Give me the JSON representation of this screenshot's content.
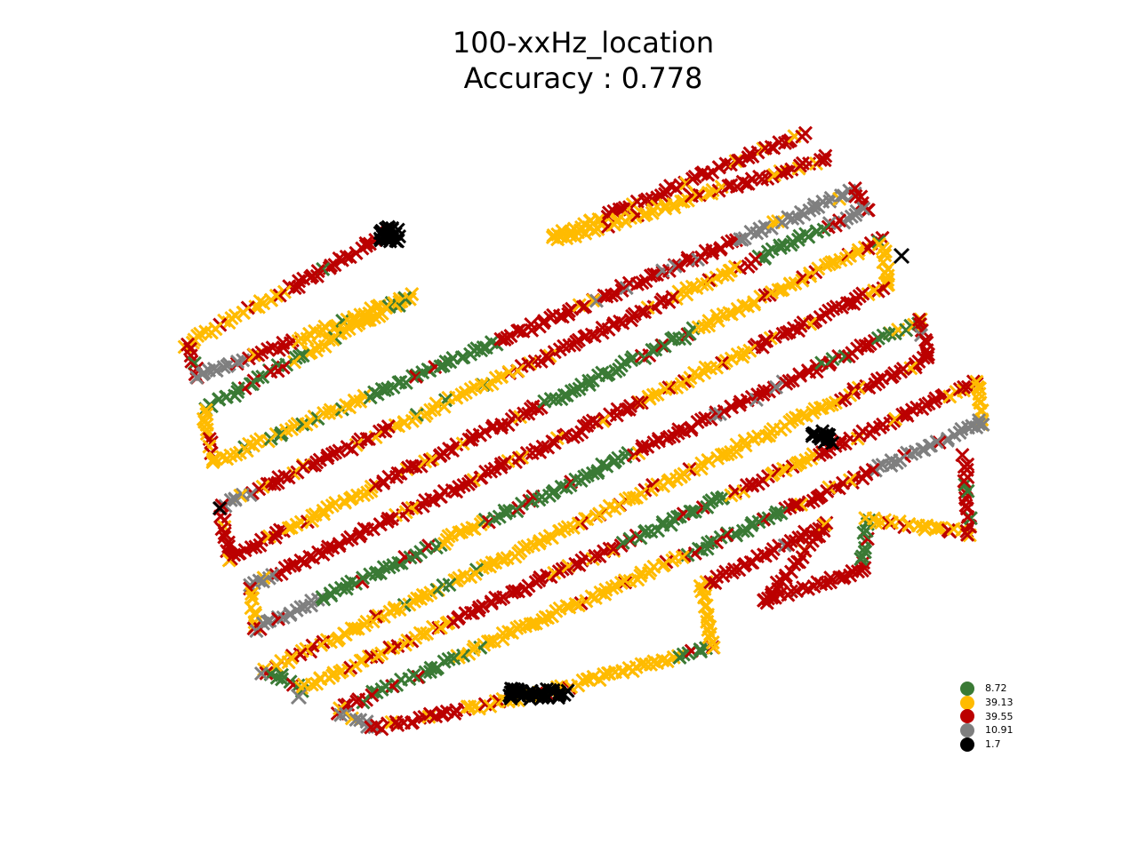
{
  "chart_data": {
    "type": "scatter",
    "title": "100-xxHz_location",
    "subtitle": "Accuracy : 0.778",
    "marker": "x",
    "axes_visible": false,
    "grid": false,
    "legend_placement": "lower-right",
    "legend": [
      {
        "label": "8.72",
        "color": "#3a7a35"
      },
      {
        "label": "39.13",
        "color": "#ffbb00"
      },
      {
        "label": "39.55",
        "color": "#bb0000"
      },
      {
        "label": "10.91",
        "color": "#7f7f7f"
      },
      {
        "label": "1.7",
        "color": "#000000"
      }
    ]
  }
}
